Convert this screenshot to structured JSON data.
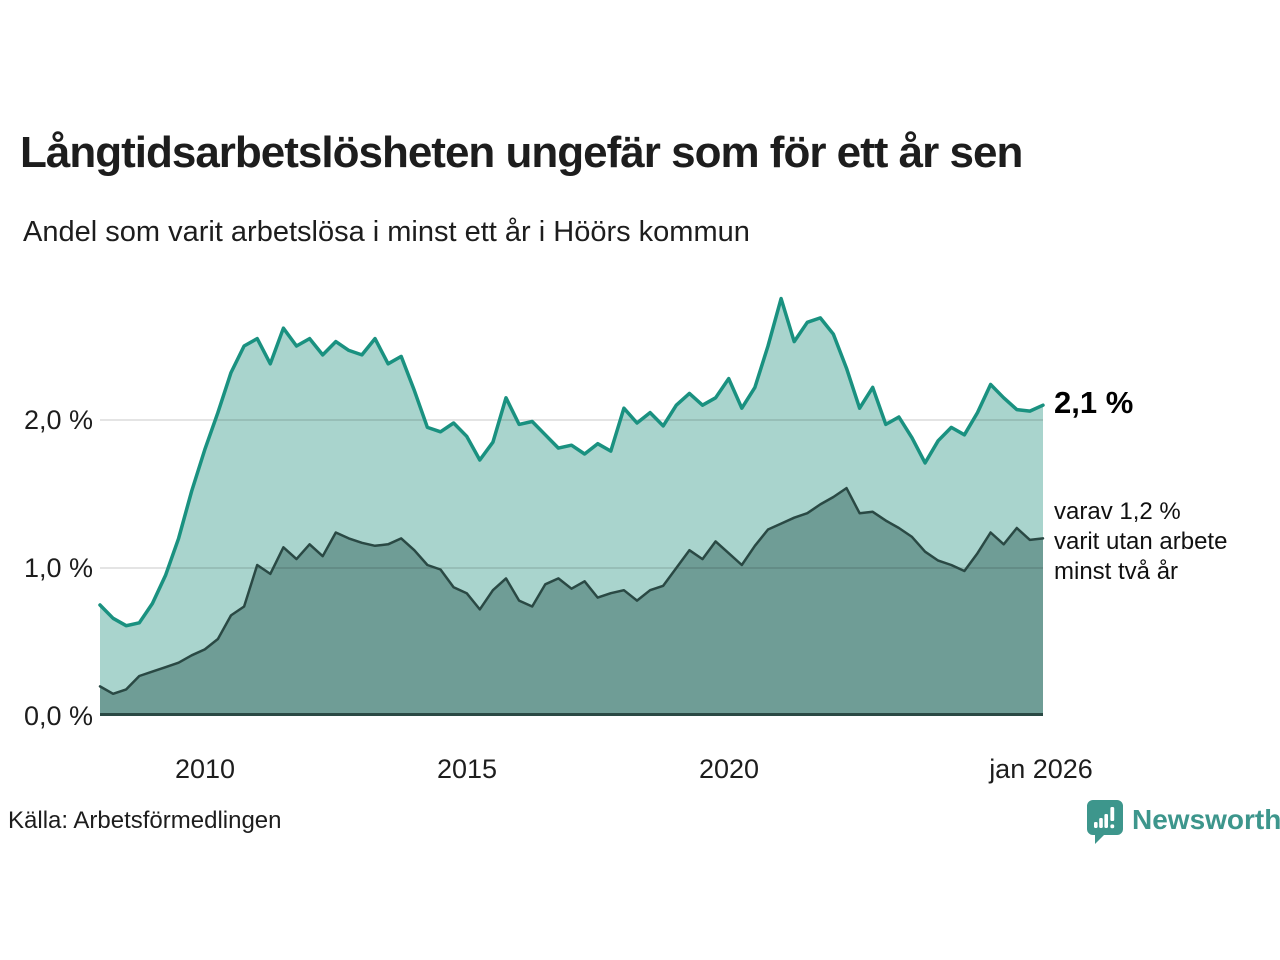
{
  "header": {
    "title": "Långtidsarbetslösheten ungefär som för ett år sen",
    "subtitle": "Andel som varit arbetslösa i minst ett år i Höörs kommun"
  },
  "chart_data": {
    "type": "area",
    "title": "Långtidsarbetslösheten ungefär som för ett år sen",
    "subtitle": "Andel som varit arbetslösa i minst ett år i Höörs kommun",
    "unit": "%",
    "x_start": 2008,
    "x_step": 0.25,
    "x_end": 2026,
    "ylim": [
      0,
      3
    ],
    "grid": "horizontal",
    "legend_position": "right-annotations",
    "yticks": [
      {
        "value": 0,
        "label": "0,0 %"
      },
      {
        "value": 1,
        "label": "1,0 %"
      },
      {
        "value": 2,
        "label": "2,0 %"
      }
    ],
    "xticks": [
      {
        "value": 2010,
        "label": "2010"
      },
      {
        "value": 2015,
        "label": "2015"
      },
      {
        "value": 2020,
        "label": "2020"
      },
      {
        "value": 2026,
        "label": "jan 2026"
      }
    ],
    "series": [
      {
        "name": "Andel arbetslösa minst ett år",
        "line_color": "#1a9180",
        "fill_color": "#a9d4cd",
        "line_width": 3.5,
        "last_value": 2.1,
        "values": [
          0.75,
          0.66,
          0.61,
          0.63,
          0.76,
          0.95,
          1.2,
          1.52,
          1.8,
          2.05,
          2.32,
          2.5,
          2.55,
          2.38,
          2.62,
          2.5,
          2.55,
          2.44,
          2.53,
          2.47,
          2.44,
          2.55,
          2.38,
          2.43,
          2.2,
          1.95,
          1.92,
          1.98,
          1.89,
          1.73,
          1.85,
          2.15,
          1.97,
          1.99,
          1.9,
          1.81,
          1.83,
          1.77,
          1.84,
          1.79,
          2.08,
          1.98,
          2.05,
          1.96,
          2.1,
          2.18,
          2.1,
          2.15,
          2.28,
          2.08,
          2.22,
          2.5,
          2.82,
          2.53,
          2.66,
          2.69,
          2.58,
          2.35,
          2.08,
          2.22,
          1.97,
          2.02,
          1.88,
          1.71,
          1.86,
          1.95,
          1.9,
          2.05,
          2.24,
          2.15,
          2.07,
          2.06,
          2.1
        ]
      },
      {
        "name": "Andel arbetslösa minst två år",
        "line_color": "#2a4944",
        "fill_color": "#6f9d96",
        "line_width": 2.5,
        "last_value": 1.2,
        "values": [
          0.2,
          0.15,
          0.18,
          0.27,
          0.3,
          0.33,
          0.36,
          0.41,
          0.45,
          0.52,
          0.68,
          0.74,
          1.02,
          0.96,
          1.14,
          1.06,
          1.16,
          1.08,
          1.24,
          1.2,
          1.17,
          1.15,
          1.16,
          1.2,
          1.12,
          1.02,
          0.99,
          0.87,
          0.83,
          0.72,
          0.85,
          0.93,
          0.78,
          0.74,
          0.89,
          0.93,
          0.86,
          0.91,
          0.8,
          0.83,
          0.85,
          0.78,
          0.85,
          0.88,
          1.0,
          1.12,
          1.06,
          1.18,
          1.1,
          1.02,
          1.15,
          1.26,
          1.3,
          1.34,
          1.37,
          1.43,
          1.48,
          1.54,
          1.37,
          1.38,
          1.32,
          1.27,
          1.21,
          1.11,
          1.05,
          1.02,
          0.98,
          1.1,
          1.24,
          1.16,
          1.27,
          1.19,
          1.2
        ]
      }
    ],
    "annotations": {
      "total_label": "2,1 %",
      "breakdown_lines": [
        "varav 1,2 %",
        "varit utan arbete",
        "minst två år"
      ]
    },
    "gridline_color": "rgba(0,0,0,0.14)",
    "baseline_color": "#2a4944"
  },
  "footer": {
    "source": "Källa: Arbetsförmedlingen",
    "logo_text": "Newsworthy",
    "logo_color": "#3d968c"
  }
}
